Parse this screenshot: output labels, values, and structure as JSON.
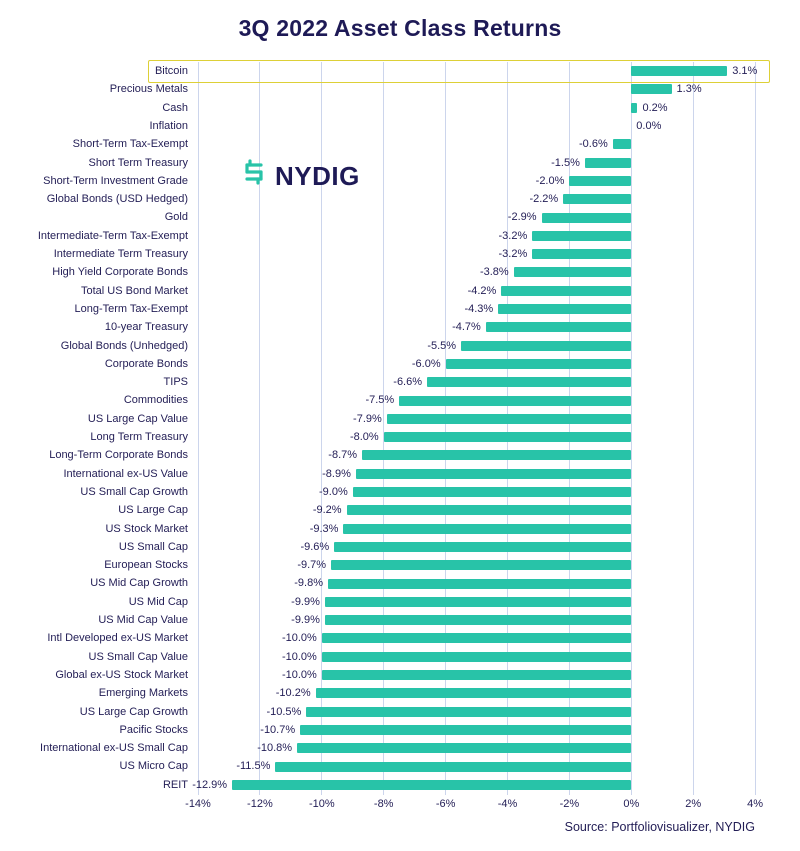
{
  "chart": {
    "title": "3Q 2022 Asset Class Returns",
    "source": "Source: Portfoliovisualizer, NYDIG",
    "logo_text": "NYDIG"
  },
  "chart_data": {
    "type": "bar",
    "orientation": "horizontal",
    "title": "3Q 2022 Asset Class Returns",
    "categories": [
      "Bitcoin",
      "Precious Metals",
      "Cash",
      "Inflation",
      "Short-Term Tax-Exempt",
      "Short Term Treasury",
      "Short-Term Investment Grade",
      "Global Bonds (USD Hedged)",
      "Gold",
      "Intermediate-Term Tax-Exempt",
      "Intermediate Term Treasury",
      "High Yield Corporate Bonds",
      "Total US Bond Market",
      "Long-Term Tax-Exempt",
      "10-year Treasury",
      "Global Bonds (Unhedged)",
      "Corporate Bonds",
      "TIPS",
      "Commodities",
      "US Large Cap Value",
      "Long Term Treasury",
      "Long-Term Corporate Bonds",
      "International ex-US Value",
      "US Small Cap Growth",
      "US Large Cap",
      "US Stock Market",
      "US Small Cap",
      "European Stocks",
      "US Mid Cap Growth",
      "US Mid Cap",
      "US Mid Cap Value",
      "Intl Developed ex-US Market",
      "US Small Cap Value",
      "Global ex-US Stock Market",
      "Emerging Markets",
      "US Large Cap Growth",
      "Pacific Stocks",
      "International ex-US Small Cap",
      "US Micro Cap",
      "REIT"
    ],
    "values": [
      3.1,
      1.3,
      0.2,
      0.0,
      -0.6,
      -1.5,
      -2.0,
      -2.2,
      -2.9,
      -3.2,
      -3.2,
      -3.8,
      -4.2,
      -4.3,
      -4.7,
      -5.5,
      -6.0,
      -6.6,
      -7.5,
      -7.9,
      -8.0,
      -8.7,
      -8.9,
      -9.0,
      -9.2,
      -9.3,
      -9.6,
      -9.7,
      -9.8,
      -9.9,
      -9.9,
      -10.0,
      -10.0,
      -10.0,
      -10.2,
      -10.5,
      -10.7,
      -10.8,
      -11.5,
      -12.9
    ],
    "value_labels": [
      "3.1%",
      "1.3%",
      "0.2%",
      "0.0%",
      "-0.6%",
      "-1.5%",
      "-2.0%",
      "-2.2%",
      "-2.9%",
      "-3.2%",
      "-3.2%",
      "-3.8%",
      "-4.2%",
      "-4.3%",
      "-4.7%",
      "-5.5%",
      "-6.0%",
      "-6.6%",
      "-7.5%",
      "-7.9%",
      "-8.0%",
      "-8.7%",
      "-8.9%",
      "-9.0%",
      "-9.2%",
      "-9.3%",
      "-9.6%",
      "-9.7%",
      "-9.8%",
      "-9.9%",
      "-9.9%",
      "-10.0%",
      "-10.0%",
      "-10.0%",
      "-10.2%",
      "-10.5%",
      "-10.7%",
      "-10.8%",
      "-11.5%",
      "-12.9%"
    ],
    "xlim": [
      -14,
      4
    ],
    "ticks": [
      -14,
      -12,
      -10,
      -8,
      -6,
      -4,
      -2,
      0,
      2,
      4
    ],
    "tick_labels": [
      "-14%",
      "-12%",
      "-10%",
      "-8%",
      "-6%",
      "-4%",
      "-2%",
      "0%",
      "2%",
      "4%"
    ],
    "bar_color": "#28c3a8",
    "grid": true,
    "highlight_category": "Bitcoin",
    "highlight_box_color": "#ddd037",
    "legend": "none",
    "source": "Source: Portfoliovisualizer, NYDIG"
  }
}
